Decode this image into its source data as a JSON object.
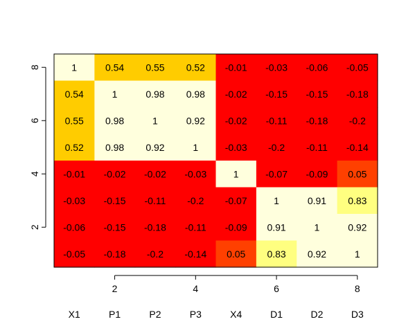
{
  "chart_data": {
    "type": "heatmap",
    "x_axis": {
      "ticks": [
        2,
        4,
        6,
        8
      ],
      "range": [
        0.5,
        8.5
      ]
    },
    "y_axis": {
      "ticks": [
        2,
        4,
        6,
        8
      ],
      "range": [
        0.5,
        8.5
      ]
    },
    "variables": [
      "X1",
      "P1",
      "P2",
      "P3",
      "X4",
      "D1",
      "D2",
      "D3"
    ],
    "color_scale": "heat (red → orange → yellow → light yellow)",
    "colors": {
      "lowest": "#ff0000",
      "low": "#ff4000",
      "high": "#ffcc00",
      "higher": "#ffff80",
      "highest": "#ffffdd"
    },
    "matrix": [
      [
        1,
        0.54,
        0.55,
        0.52,
        -0.01,
        -0.03,
        -0.06,
        -0.05
      ],
      [
        0.54,
        1,
        0.98,
        0.98,
        -0.02,
        -0.15,
        -0.15,
        -0.18
      ],
      [
        0.55,
        0.98,
        1,
        0.92,
        -0.02,
        -0.11,
        -0.18,
        -0.2
      ],
      [
        0.52,
        0.98,
        0.92,
        1,
        -0.03,
        -0.2,
        -0.11,
        -0.14
      ],
      [
        -0.01,
        -0.02,
        -0.02,
        -0.03,
        1,
        -0.07,
        -0.09,
        0.05
      ],
      [
        -0.03,
        -0.15,
        -0.11,
        -0.2,
        -0.07,
        1,
        0.91,
        0.83
      ],
      [
        -0.06,
        -0.15,
        -0.18,
        -0.11,
        -0.09,
        0.91,
        1,
        0.92
      ],
      [
        -0.05,
        -0.18,
        -0.2,
        -0.14,
        0.05,
        0.83,
        0.92,
        1
      ]
    ],
    "title": "",
    "xlabel": "",
    "ylabel": ""
  }
}
